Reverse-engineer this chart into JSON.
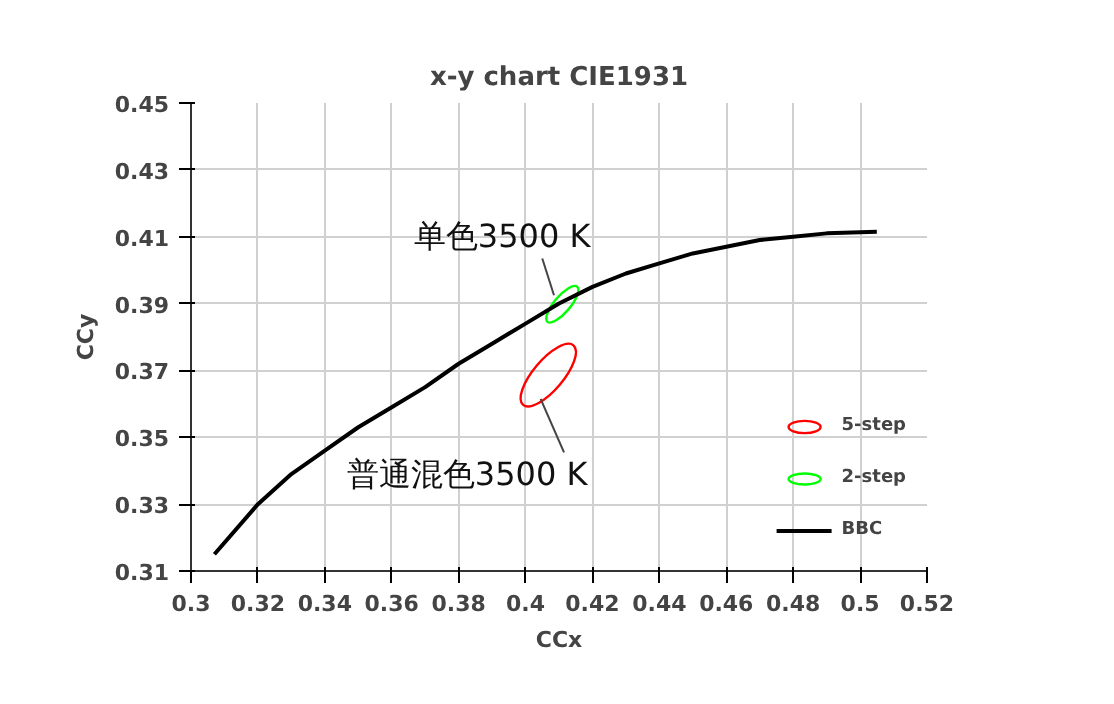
{
  "chart_data": {
    "type": "line",
    "title": "x-y chart CIE1931",
    "xlabel": "CCx",
    "ylabel": "CCy",
    "xlim": [
      0.3,
      0.52
    ],
    "ylim": [
      0.31,
      0.45
    ],
    "xticks": [
      0.3,
      0.32,
      0.34,
      0.36,
      0.38,
      0.4,
      0.42,
      0.44,
      0.46,
      0.48,
      0.5,
      0.52
    ],
    "yticks": [
      0.31,
      0.33,
      0.35,
      0.37,
      0.39,
      0.41,
      0.43,
      0.45
    ],
    "grid": true,
    "legend": "bottom right",
    "line_style": "solid",
    "marker": "none",
    "series": [
      {
        "name": "5-step",
        "type": "scatter",
        "color": "#ff0000",
        "x": [
          0.4068
        ],
        "values": [
          0.3686
        ]
      },
      {
        "name": "2-step",
        "type": "scatter",
        "color": "#00ff00",
        "x": [
          0.411
        ],
        "values": [
          0.3898
        ]
      },
      {
        "name": "BBC",
        "color": "#000000",
        "x": [
          0.307,
          0.32,
          0.33,
          0.34,
          0.35,
          0.36,
          0.37,
          0.38,
          0.39,
          0.4,
          0.41,
          0.42,
          0.43,
          0.44,
          0.45,
          0.46,
          0.47,
          0.48,
          0.49,
          0.505
        ],
        "values": [
          0.315,
          0.33,
          0.339,
          0.346,
          0.353,
          0.359,
          0.365,
          0.372,
          0.378,
          0.384,
          0.39,
          0.395,
          0.399,
          0.402,
          0.405,
          0.407,
          0.409,
          0.41,
          0.411,
          0.4115
        ]
      }
    ],
    "annotations": [
      {
        "text": "单色3500 K",
        "x": 0.4085,
        "y": 0.3925
      },
      {
        "text": "普通混色3500 K",
        "x": 0.4045,
        "y": 0.3615
      }
    ]
  }
}
